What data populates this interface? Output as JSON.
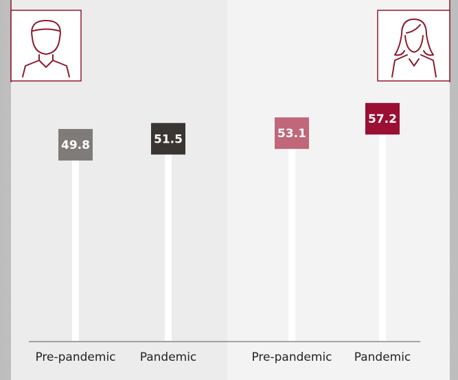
{
  "chart_data": {
    "type": "bar",
    "categories": [
      "Pre-pandemic",
      "Pandemic",
      "Pre-pandemic",
      "Pandemic"
    ],
    "values": [
      49.8,
      51.5,
      53.1,
      57.2
    ],
    "colors": [
      "#7f7b78",
      "#3a3533",
      "#c0677a",
      "#9b0f33"
    ]
  }
}
